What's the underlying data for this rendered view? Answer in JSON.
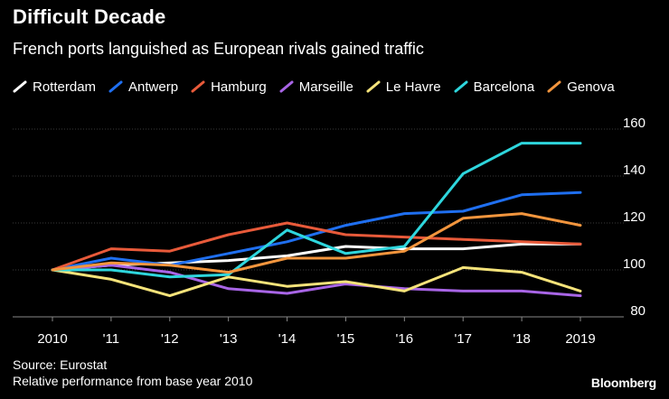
{
  "header": {
    "title": "Difficult Decade",
    "subtitle": "French ports languished as European rivals gained traffic"
  },
  "footer": {
    "source": "Source: Eurostat",
    "note": "Relative performance from base year 2010",
    "brand": "Bloomberg"
  },
  "chart_data": {
    "type": "line",
    "title": "Difficult Decade",
    "subtitle": "French ports languished as European rivals gained traffic",
    "xlabel": "",
    "ylabel": "",
    "categories": [
      "2010",
      "'11",
      "'12",
      "'13",
      "'14",
      "'15",
      "'16",
      "'17",
      "'18",
      "2019"
    ],
    "ylim": [
      80,
      160
    ],
    "yticks": [
      80,
      100,
      120,
      140,
      160
    ],
    "grid": true,
    "legend_position": "top",
    "series": [
      {
        "name": "Rotterdam",
        "color": "#ffffff",
        "values": [
          100,
          102,
          103,
          104,
          106,
          110,
          109,
          109,
          111,
          111
        ]
      },
      {
        "name": "Antwerp",
        "color": "#1f6ff0",
        "values": [
          100,
          105,
          102,
          107,
          112,
          119,
          124,
          125,
          132,
          133
        ]
      },
      {
        "name": "Hamburg",
        "color": "#e85a3a",
        "values": [
          100,
          109,
          108,
          115,
          120,
          115,
          114,
          113,
          112,
          111
        ]
      },
      {
        "name": "Marseille",
        "color": "#a865e6",
        "values": [
          100,
          102,
          99,
          92,
          90,
          94,
          92,
          91,
          91,
          89
        ]
      },
      {
        "name": "Le Havre",
        "color": "#f5e37a",
        "values": [
          100,
          96,
          89,
          97,
          93,
          95,
          91,
          101,
          99,
          91
        ]
      },
      {
        "name": "Barcelona",
        "color": "#2ed6dd",
        "values": [
          100,
          100,
          97,
          98,
          117,
          107,
          110,
          141,
          154,
          154
        ]
      },
      {
        "name": "Genova",
        "color": "#f2953d",
        "values": [
          100,
          103,
          102,
          99,
          105,
          105,
          108,
          122,
          124,
          119
        ]
      }
    ]
  }
}
